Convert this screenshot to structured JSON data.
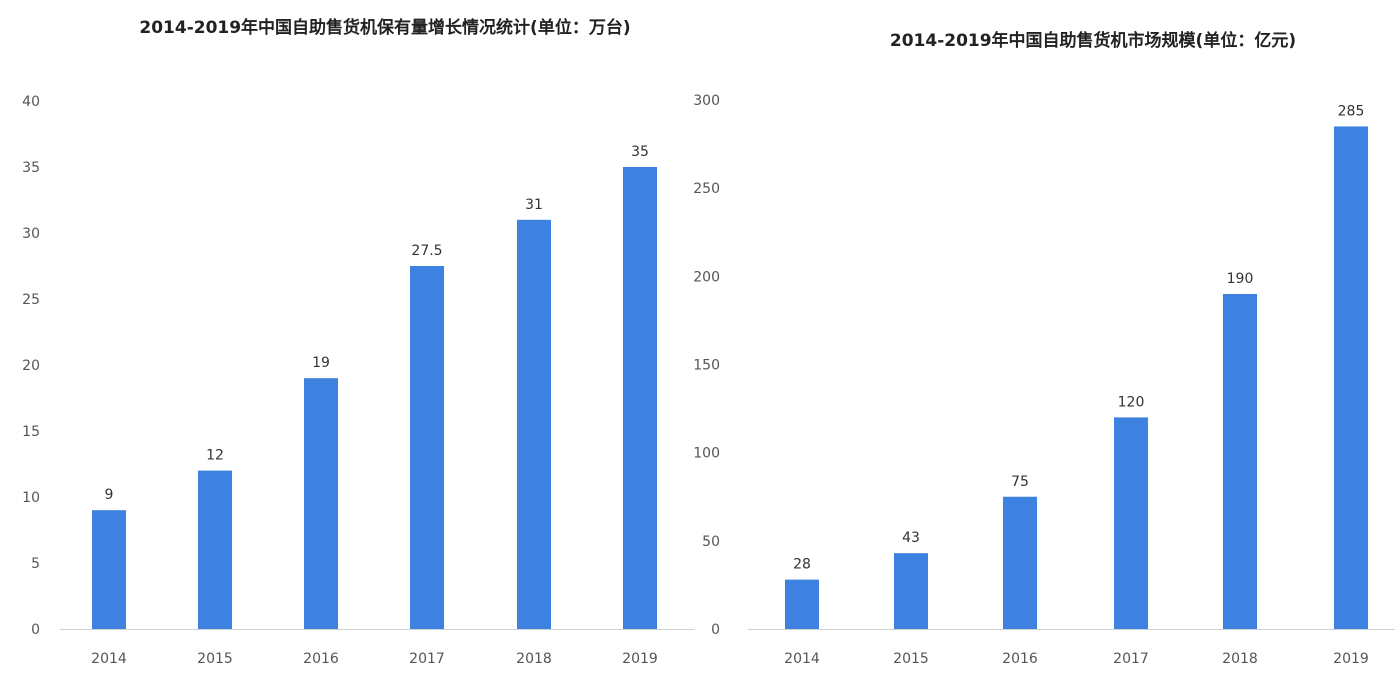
{
  "chart_data": [
    {
      "type": "bar",
      "title": "2014-2019年中国自助售货机保有量增长情况统计(单位：万台)",
      "categories": [
        "2014",
        "2015",
        "2016",
        "2017",
        "2018",
        "2019"
      ],
      "values": [
        9,
        12,
        19,
        27.5,
        31,
        35
      ],
      "ylim": [
        0,
        40
      ],
      "yticks": [
        0,
        5,
        10,
        15,
        20,
        25,
        30,
        35,
        40
      ],
      "grid": false,
      "bar_color": "#3d82e0"
    },
    {
      "type": "bar",
      "title": "2014-2019年中国自助售货机市场规模(单位：亿元)",
      "categories": [
        "2014",
        "2015",
        "2016",
        "2017",
        "2018",
        "2019"
      ],
      "values": [
        28,
        43,
        75,
        120,
        190,
        285
      ],
      "ylim": [
        0,
        300
      ],
      "yticks": [
        0,
        50,
        100,
        150,
        200,
        250,
        300
      ],
      "grid": false,
      "bar_color": "#3d82e0"
    }
  ]
}
